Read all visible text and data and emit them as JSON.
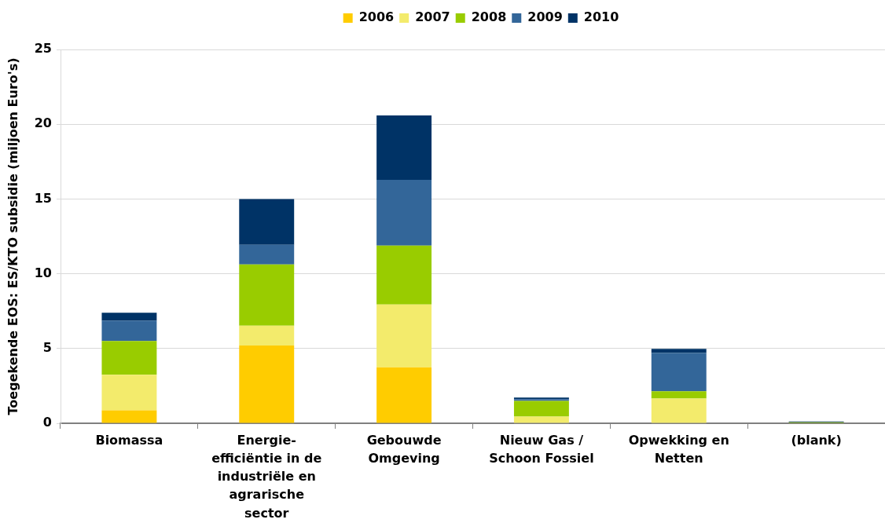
{
  "chart_data": {
    "type": "bar",
    "stacked": true,
    "ylabel": "Toegekende EOS: ES/KTO subsidie (miljoen Euro's)",
    "categories": [
      "Biomassa",
      "Energie-efficiëntie in de industriële en agrarische sector",
      "Gebouwde Omgeving",
      "Nieuw Gas / Schoon Fossiel",
      "Opwekking en Netten",
      "(blank)"
    ],
    "series": [
      {
        "name": "2006",
        "color": "#ffcc00",
        "values": [
          0.87,
          5.2,
          3.74,
          null,
          null,
          null
        ]
      },
      {
        "name": "2007",
        "color": "#f3eb6c",
        "values": [
          2.37,
          1.32,
          4.21,
          0.44,
          1.66,
          null
        ]
      },
      {
        "name": "2008",
        "color": "#99cc00",
        "values": [
          2.26,
          4.1,
          3.93,
          1.06,
          0.48,
          0.06
        ]
      },
      {
        "name": "2009",
        "color": "#336699",
        "values": [
          1.37,
          1.31,
          4.4,
          0.11,
          2.56,
          null
        ]
      },
      {
        "name": "2010",
        "color": "#003366",
        "values": [
          0.52,
          3.07,
          4.31,
          0.11,
          0.27,
          0.06
        ]
      }
    ],
    "ylim": [
      0,
      25
    ],
    "yticks": [
      0,
      5,
      10,
      15,
      20,
      25
    ],
    "grid": "y",
    "legend": "top"
  }
}
